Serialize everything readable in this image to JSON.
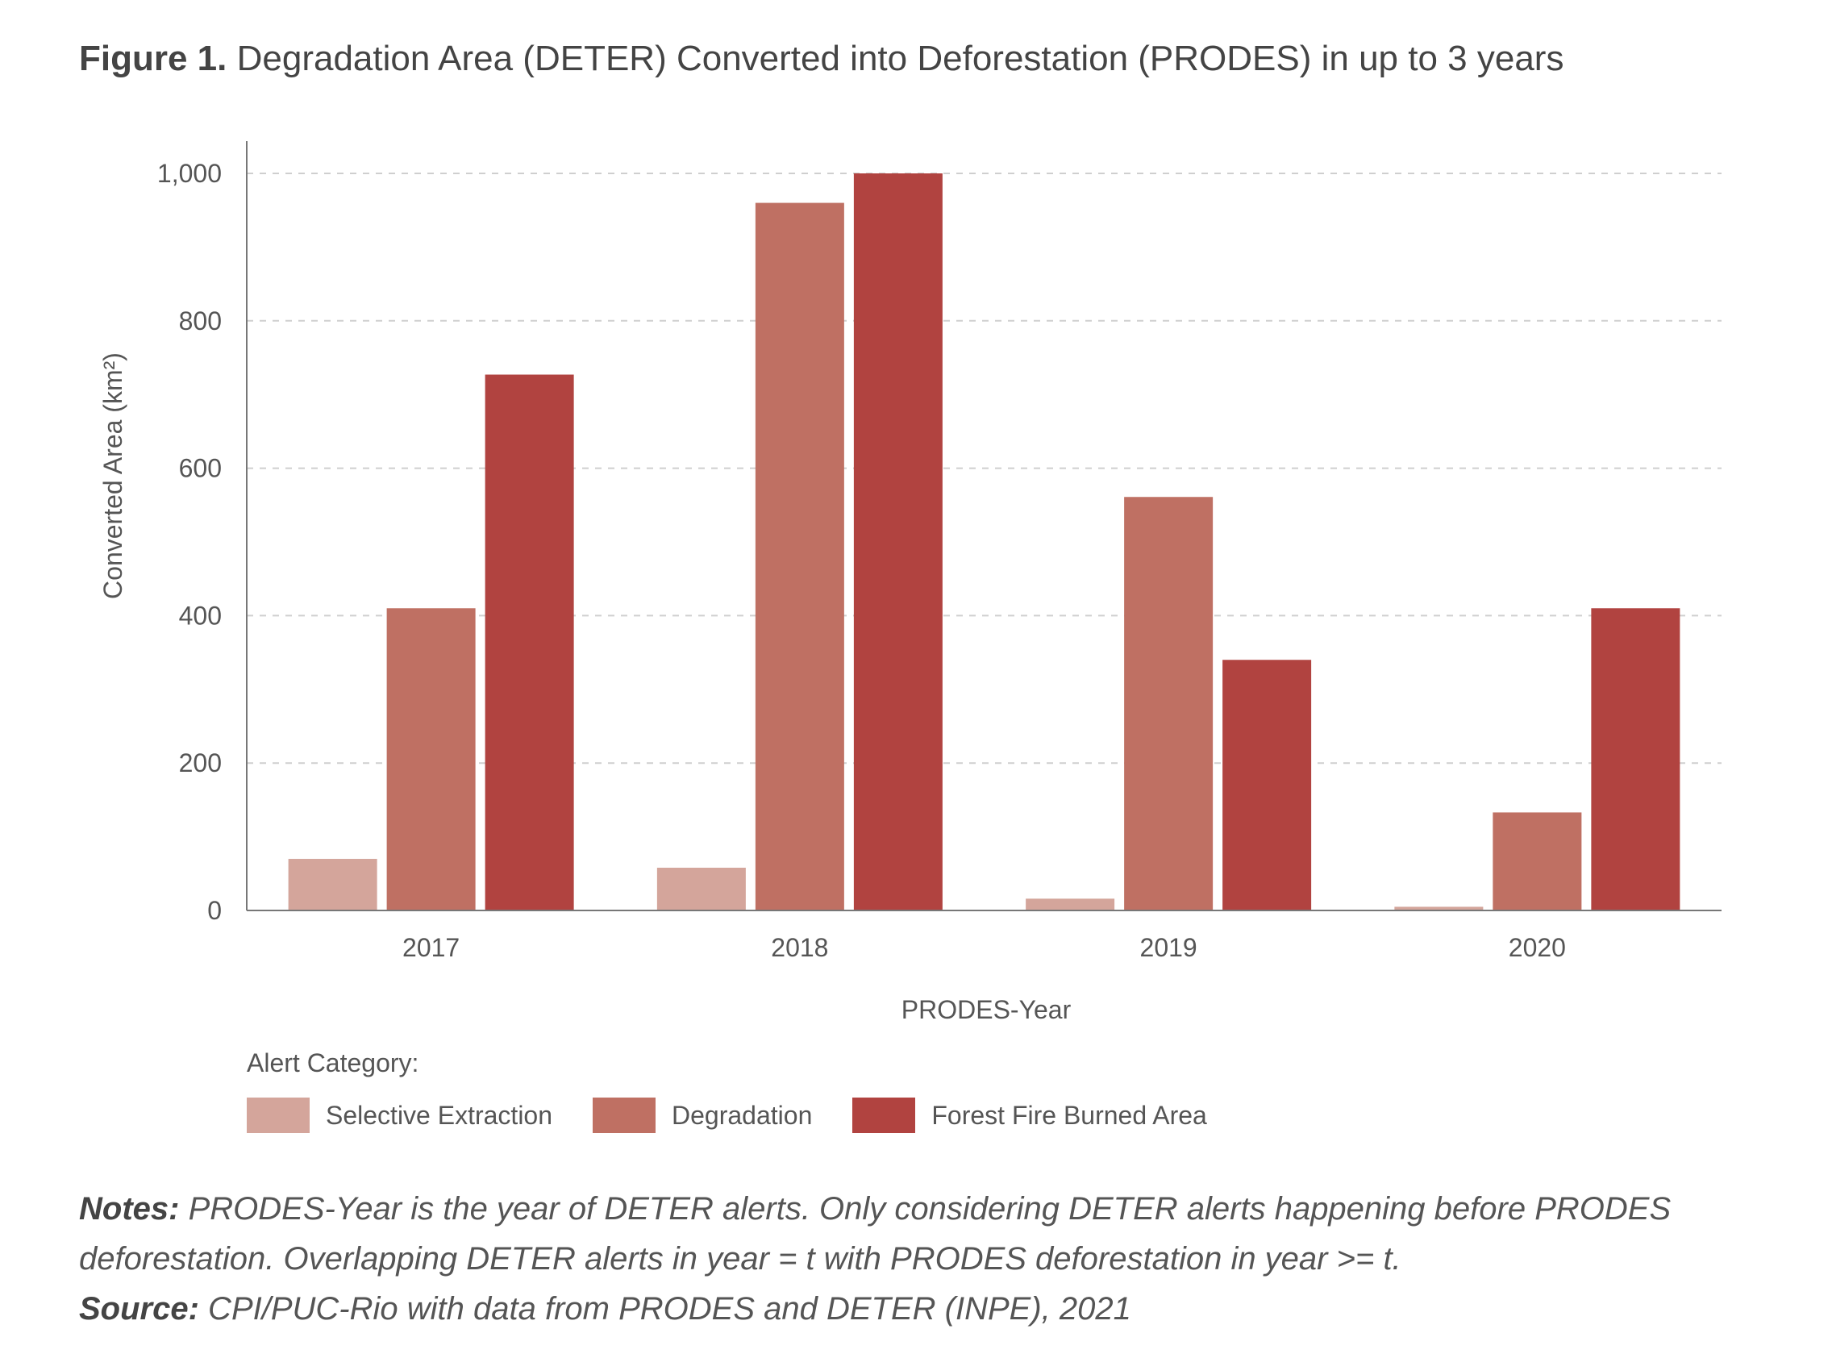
{
  "figure": {
    "label": "Figure 1.",
    "title": "Degradation Area (DETER) Converted into Deforestation (PRODES) in up to 3 years"
  },
  "chart_data": {
    "type": "bar",
    "categories": [
      "2017",
      "2018",
      "2019",
      "2020"
    ],
    "series": [
      {
        "name": "Selective Extraction",
        "color": "#d4a59b",
        "values": [
          70,
          58,
          16,
          5
        ]
      },
      {
        "name": "Degradation",
        "color": "#bf7063",
        "values": [
          410,
          960,
          561,
          133
        ]
      },
      {
        "name": "Forest Fire Burned Area",
        "color": "#b14340",
        "values": [
          727,
          1000,
          340,
          410
        ]
      }
    ],
    "xlabel": "PRODES-Year",
    "ylabel": "Converted Area  (km²)",
    "ylim": [
      0,
      1000
    ],
    "yticks": [
      0,
      200,
      400,
      600,
      800,
      1000
    ],
    "ytick_labels": [
      "0",
      "200",
      "400",
      "600",
      "800",
      "1,000"
    ],
    "grid": true,
    "legend_title": "Alert Category:",
    "legend_position": "bottom-left"
  },
  "notes": {
    "notes_label": "Notes:",
    "notes_text": " PRODES-Year is the year of DETER alerts. Only considering DETER alerts happening before PRODES deforestation. Overlapping DETER alerts in year = t with PRODES deforestation in year >= t.",
    "source_label": "Source:",
    "source_text": " CPI/PUC-Rio with data from PRODES and DETER (INPE), 2021"
  }
}
